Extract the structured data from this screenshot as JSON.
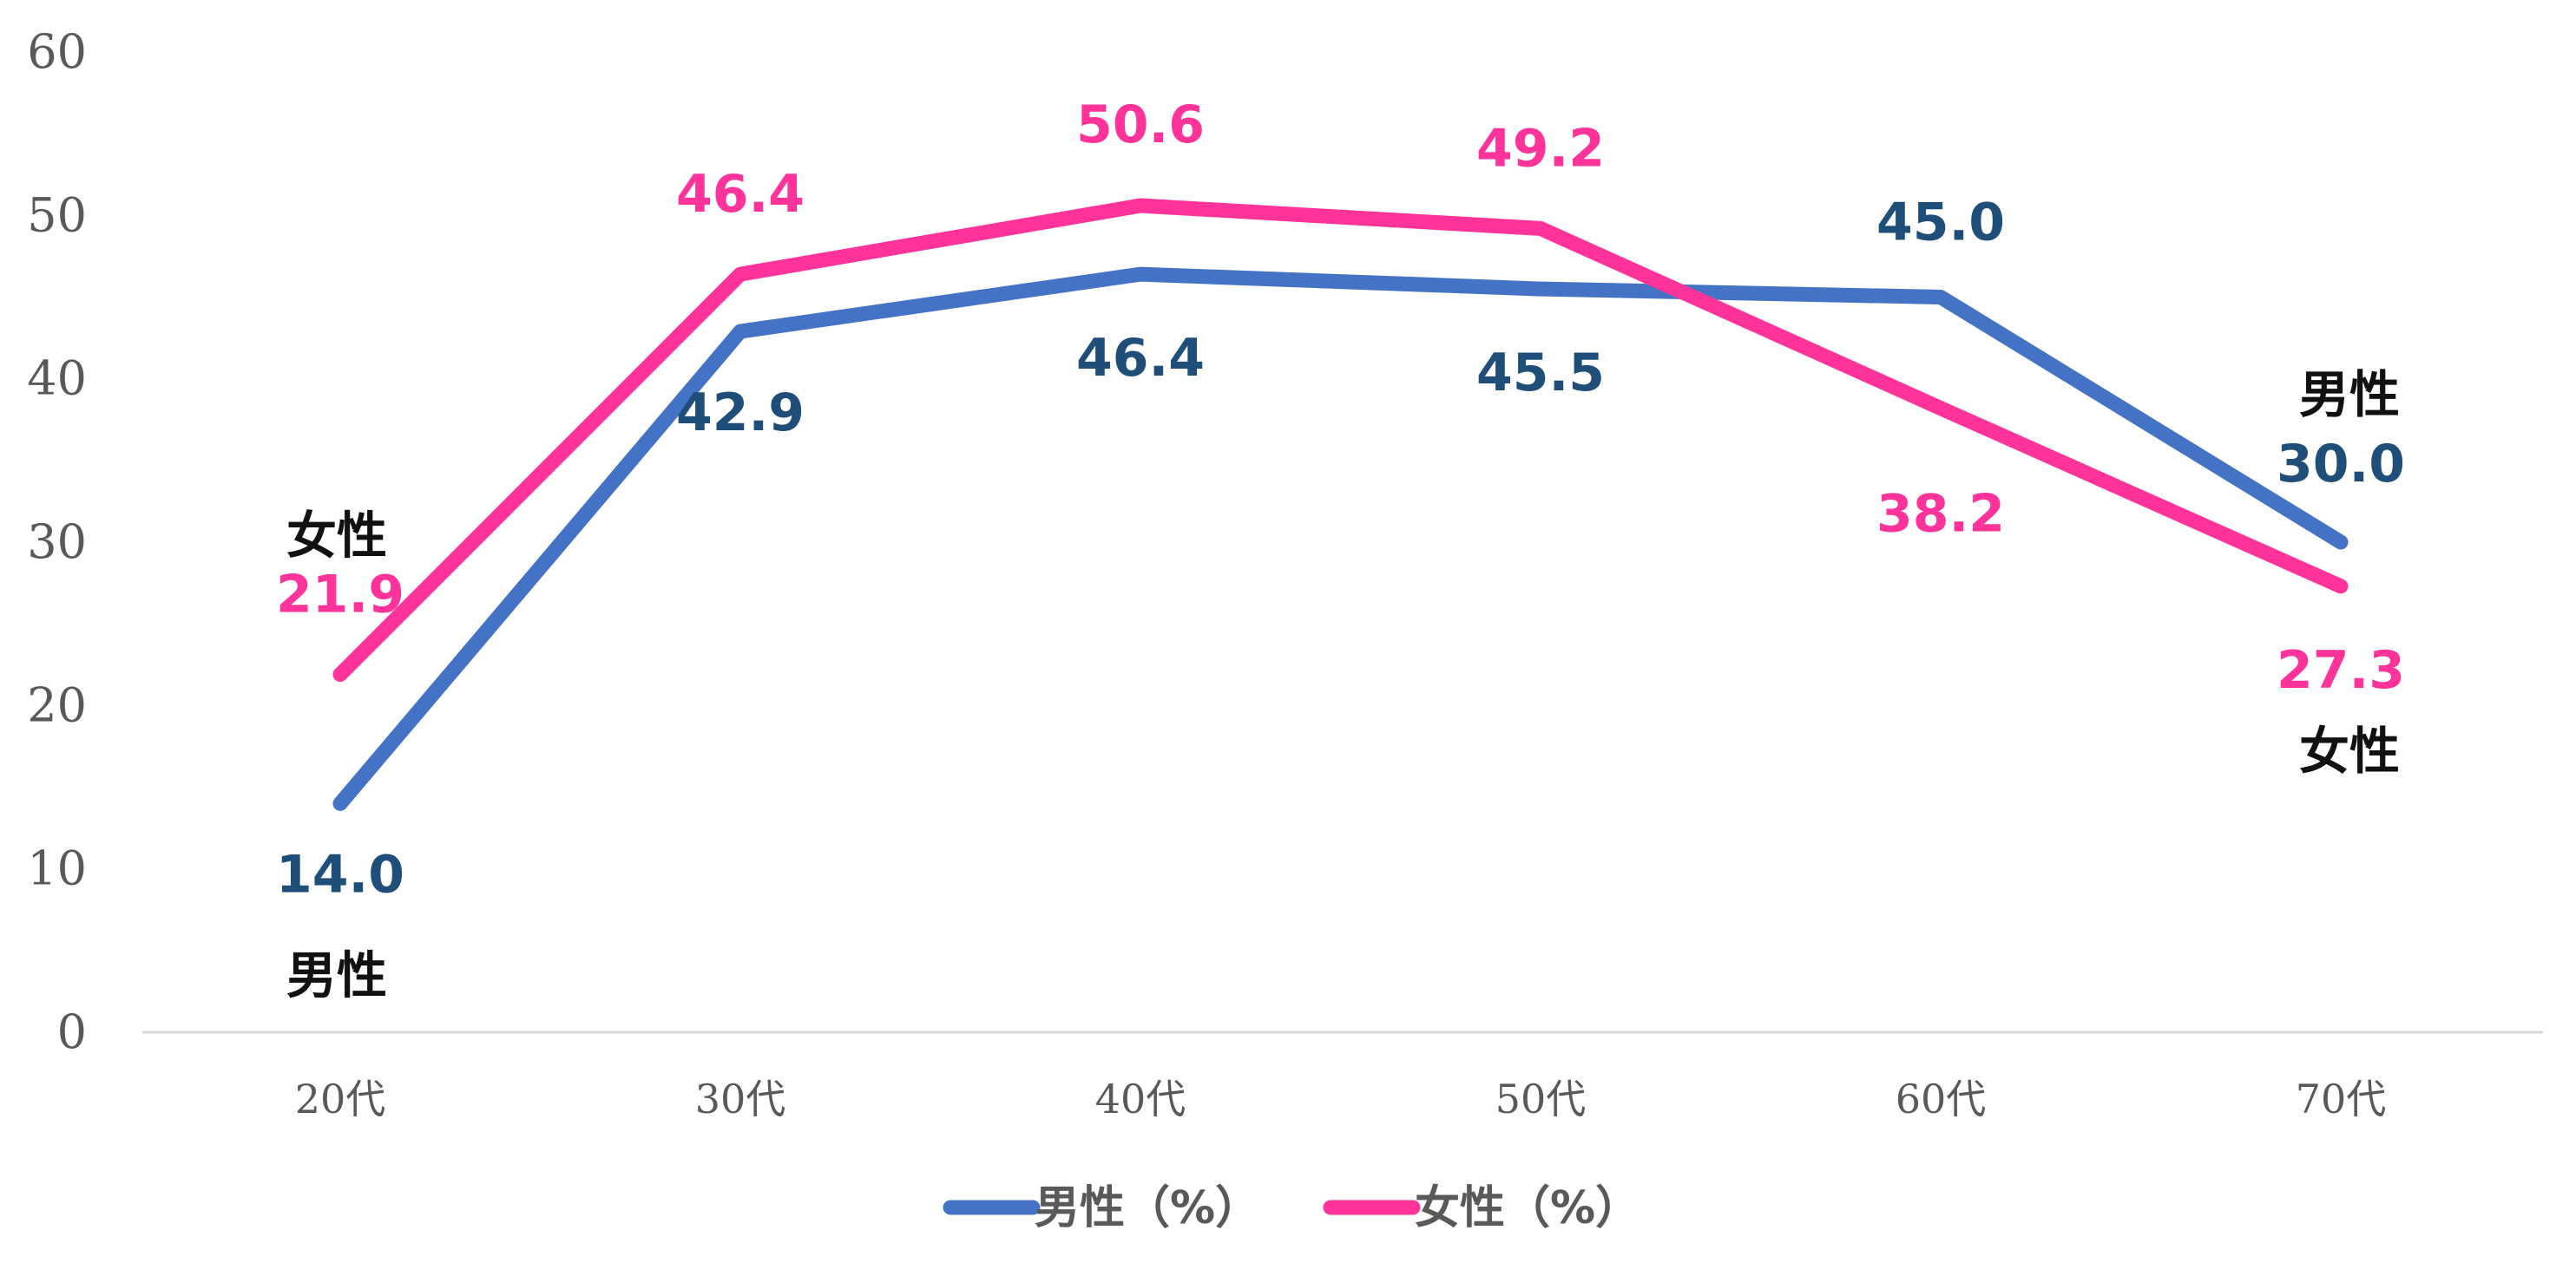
{
  "chart_data": {
    "type": "line",
    "categories": [
      "20代",
      "30代",
      "40代",
      "50代",
      "60代",
      "70代"
    ],
    "ylim": [
      0,
      60
    ],
    "yticks": [
      "0",
      "10",
      "20",
      "30",
      "40",
      "50",
      "60"
    ],
    "grid": false,
    "legend_position": "bottom",
    "series": [
      {
        "name": "男性（%）",
        "tag": "男性",
        "color": "#4472C4",
        "label_color": "#1F4E79",
        "values": [
          14.0,
          42.9,
          46.4,
          45.5,
          45.0,
          30.0
        ],
        "labels": [
          "14.0",
          "42.9",
          "46.4",
          "45.5",
          "45.0",
          "30.0"
        ]
      },
      {
        "name": "女性（%）",
        "tag": "女性",
        "color": "#FF3399",
        "label_color": "#FF3399",
        "values": [
          21.9,
          46.4,
          50.6,
          49.2,
          38.2,
          27.3
        ],
        "labels": [
          "21.9",
          "46.4",
          "50.6",
          "49.2",
          "38.2",
          "27.3"
        ]
      }
    ]
  }
}
